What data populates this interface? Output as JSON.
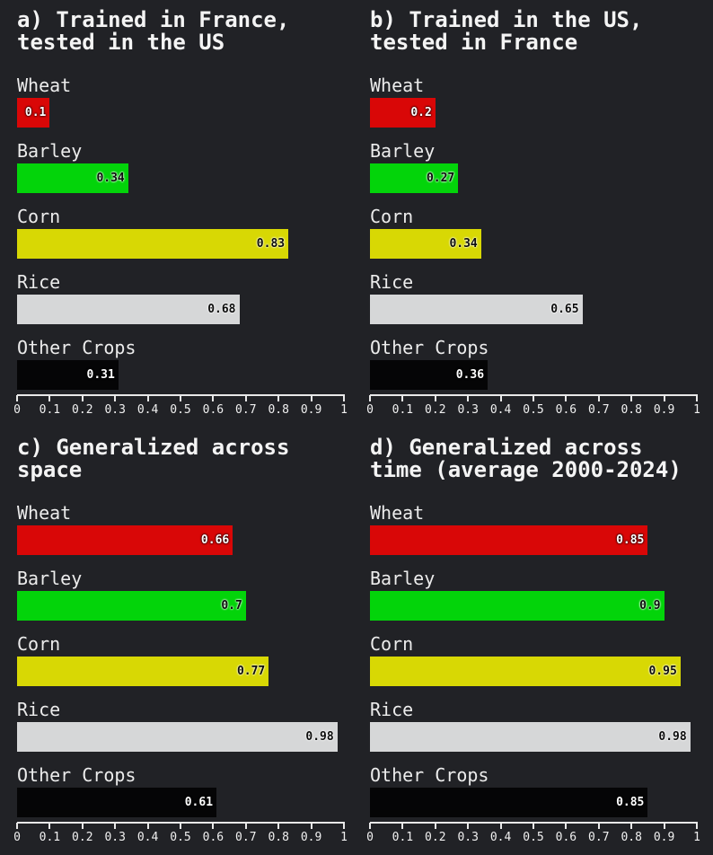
{
  "colors": {
    "background": "#212226",
    "Wheat": "#d90707",
    "Barley": "#03d40a",
    "Corn": "#d8d804",
    "Rice": "#d6d7d8",
    "Other Crops": "#050506"
  },
  "chart_data": [
    {
      "type": "bar",
      "orientation": "horizontal",
      "title": "a) Trained in France,\ntested in the US",
      "categories": [
        "Wheat",
        "Barley",
        "Corn",
        "Rice",
        "Other Crops"
      ],
      "values": [
        0.1,
        0.34,
        0.83,
        0.68,
        0.31
      ],
      "xlim": [
        0,
        1
      ],
      "xticks": [
        "0",
        "0.1",
        "0.2",
        "0.3",
        "0.4",
        "0.5",
        "0.6",
        "0.7",
        "0.8",
        "0.9",
        "1"
      ],
      "grid": false
    },
    {
      "type": "bar",
      "orientation": "horizontal",
      "title": "b) Trained in the US,\ntested in France",
      "categories": [
        "Wheat",
        "Barley",
        "Corn",
        "Rice",
        "Other Crops"
      ],
      "values": [
        0.2,
        0.27,
        0.34,
        0.65,
        0.36
      ],
      "xlim": [
        0,
        1
      ],
      "xticks": [
        "0",
        "0.1",
        "0.2",
        "0.3",
        "0.4",
        "0.5",
        "0.6",
        "0.7",
        "0.8",
        "0.9",
        "1"
      ],
      "grid": false
    },
    {
      "type": "bar",
      "orientation": "horizontal",
      "title": "c) Generalized across\nspace",
      "categories": [
        "Wheat",
        "Barley",
        "Corn",
        "Rice",
        "Other Crops"
      ],
      "values": [
        0.66,
        0.7,
        0.77,
        0.98,
        0.61
      ],
      "xlim": [
        0,
        1
      ],
      "xticks": [
        "0",
        "0.1",
        "0.2",
        "0.3",
        "0.4",
        "0.5",
        "0.6",
        "0.7",
        "0.8",
        "0.9",
        "1"
      ],
      "grid": false
    },
    {
      "type": "bar",
      "orientation": "horizontal",
      "title": "d) Generalized across\ntime (average 2000-2024)",
      "categories": [
        "Wheat",
        "Barley",
        "Corn",
        "Rice",
        "Other Crops"
      ],
      "values": [
        0.85,
        0.9,
        0.95,
        0.98,
        0.85
      ],
      "xlim": [
        0,
        1
      ],
      "xticks": [
        "0",
        "0.1",
        "0.2",
        "0.3",
        "0.4",
        "0.5",
        "0.6",
        "0.7",
        "0.8",
        "0.9",
        "1"
      ],
      "grid": false
    }
  ]
}
